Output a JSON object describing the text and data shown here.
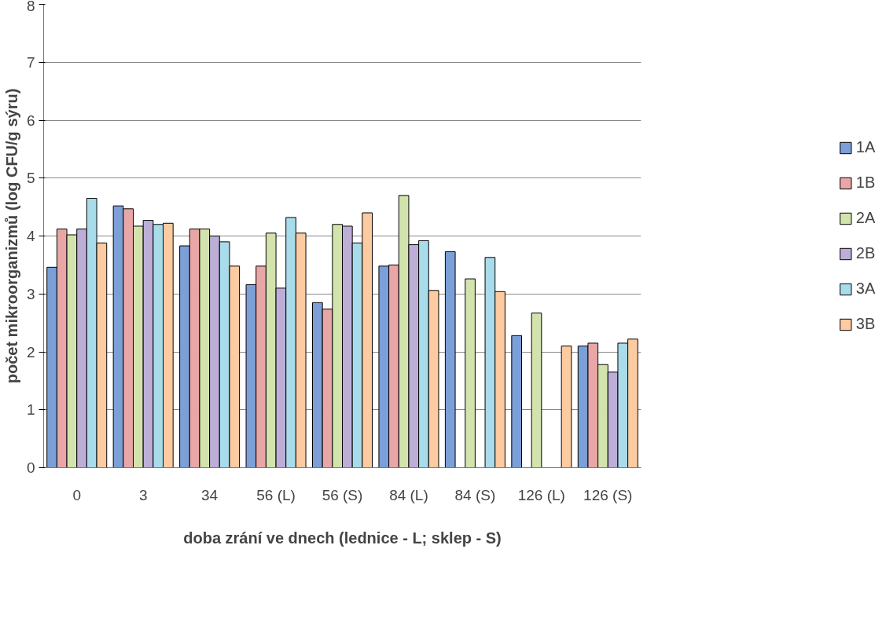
{
  "chart_data": {
    "type": "bar",
    "xlabel": "doba zrání ve dnech (lednice - L; sklep - S)",
    "ylabel": "počet mikroorganizmů (log CFU/g sýru)",
    "categories": [
      "0",
      "3",
      "34",
      "56 (L)",
      "56 (S)",
      "84 (L)",
      "84 (S)",
      "126 (L)",
      "126 (S)"
    ],
    "series": [
      {
        "name": "1A",
        "color": "#7b9fd6",
        "values": [
          3.46,
          4.52,
          3.83,
          3.16,
          2.85,
          3.48,
          3.73,
          2.28,
          2.1
        ]
      },
      {
        "name": "1B",
        "color": "#e8a7a6",
        "values": [
          4.12,
          4.47,
          4.12,
          3.48,
          2.74,
          3.5,
          null,
          null,
          2.15
        ]
      },
      {
        "name": "2A",
        "color": "#d3e3ad",
        "values": [
          4.02,
          4.17,
          4.12,
          4.05,
          4.2,
          4.7,
          3.26,
          2.67,
          1.78
        ]
      },
      {
        "name": "2B",
        "color": "#bcaed6",
        "values": [
          4.12,
          4.27,
          4.0,
          3.1,
          4.17,
          3.85,
          null,
          null,
          1.65
        ]
      },
      {
        "name": "3A",
        "color": "#a9dcea",
        "values": [
          4.65,
          4.2,
          3.9,
          4.32,
          3.88,
          3.92,
          3.63,
          null,
          2.15
        ]
      },
      {
        "name": "3B",
        "color": "#fccba2",
        "values": [
          3.88,
          4.22,
          3.48,
          4.05,
          4.4,
          3.06,
          3.04,
          2.1,
          2.22
        ]
      }
    ],
    "ylim": [
      0,
      8
    ],
    "yticks": [
      0,
      1,
      2,
      3,
      4,
      5,
      6,
      7,
      8
    ],
    "grid": "y",
    "legend": "right"
  }
}
